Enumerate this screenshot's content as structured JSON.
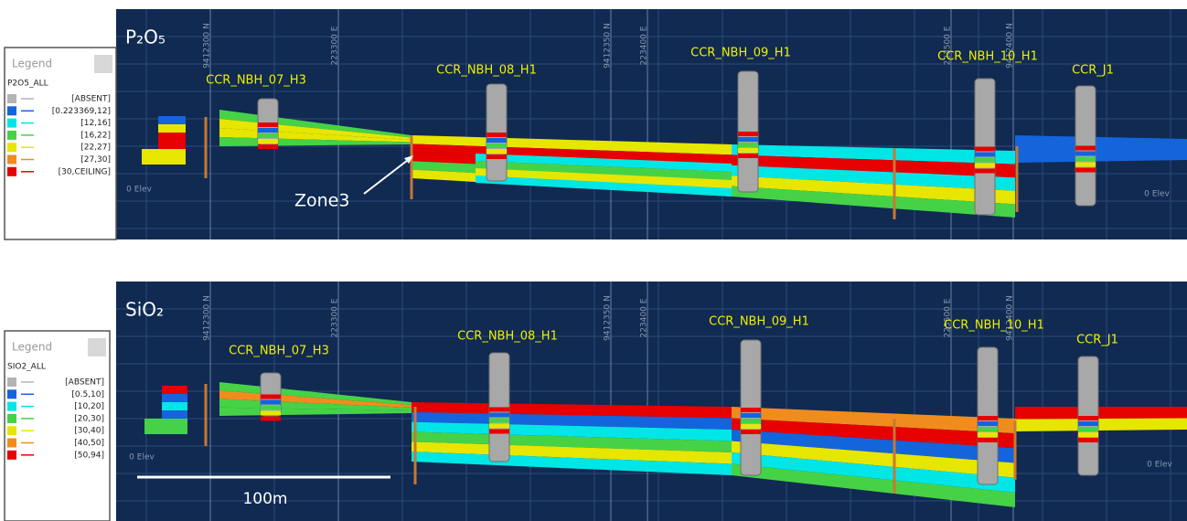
{
  "panels": [
    {
      "title": "P₂O₅",
      "legend": {
        "header": "Legend",
        "title": "P2O5_ALL",
        "items": [
          {
            "label": "[ABSENT]",
            "color": "#b4b4b4"
          },
          {
            "label": "[0.223369,12]",
            "color": "#1464dc"
          },
          {
            "label": "[12,16]",
            "color": "#00e6e6"
          },
          {
            "label": "[16,22]",
            "color": "#46d246"
          },
          {
            "label": "[22,27]",
            "color": "#e6e600"
          },
          {
            "label": "[27,30]",
            "color": "#f08c1e"
          },
          {
            "label": "[30,CEILING]",
            "color": "#e60000"
          }
        ]
      },
      "holes": [
        "CCR_NBH_07_H3",
        "CCR_NBH_08_H1",
        "CCR_NBH_09_H1",
        "CCR_NBH_10_H1",
        "CCR_J1"
      ],
      "grid_labels": [
        "9412300 N",
        "223300 E",
        "9412350 N",
        "223400 E",
        "223500 E",
        "9412400 N"
      ],
      "elevation_labels": [
        "0 Elev",
        "0 Elev"
      ],
      "annotation": "Zone3"
    },
    {
      "title": "SiO₂",
      "legend": {
        "header": "Legend",
        "title": "SIO2_ALL",
        "items": [
          {
            "label": "[ABSENT]",
            "color": "#b4b4b4"
          },
          {
            "label": "[0.5,10]",
            "color": "#1464dc"
          },
          {
            "label": "[10,20]",
            "color": "#00e6e6"
          },
          {
            "label": "[20,30]",
            "color": "#46d246"
          },
          {
            "label": "[30,40]",
            "color": "#e6e600"
          },
          {
            "label": "[40,50]",
            "color": "#f08c1e"
          },
          {
            "label": "[50,94]",
            "color": "#e60000"
          }
        ]
      },
      "holes": [
        "CCR_NBH_07_H3",
        "CCR_NBH_08_H1",
        "CCR_NBH_09_H1",
        "CCR_NBH_10_H1",
        "CCR_J1"
      ],
      "grid_labels": [
        "9412300 N",
        "223300 E",
        "9412350 N",
        "223400 E",
        "223500 E",
        "9412400 N"
      ],
      "elevation_labels": [
        "0 Elev",
        "0 Elev"
      ],
      "scale_bar": "100m"
    }
  ]
}
